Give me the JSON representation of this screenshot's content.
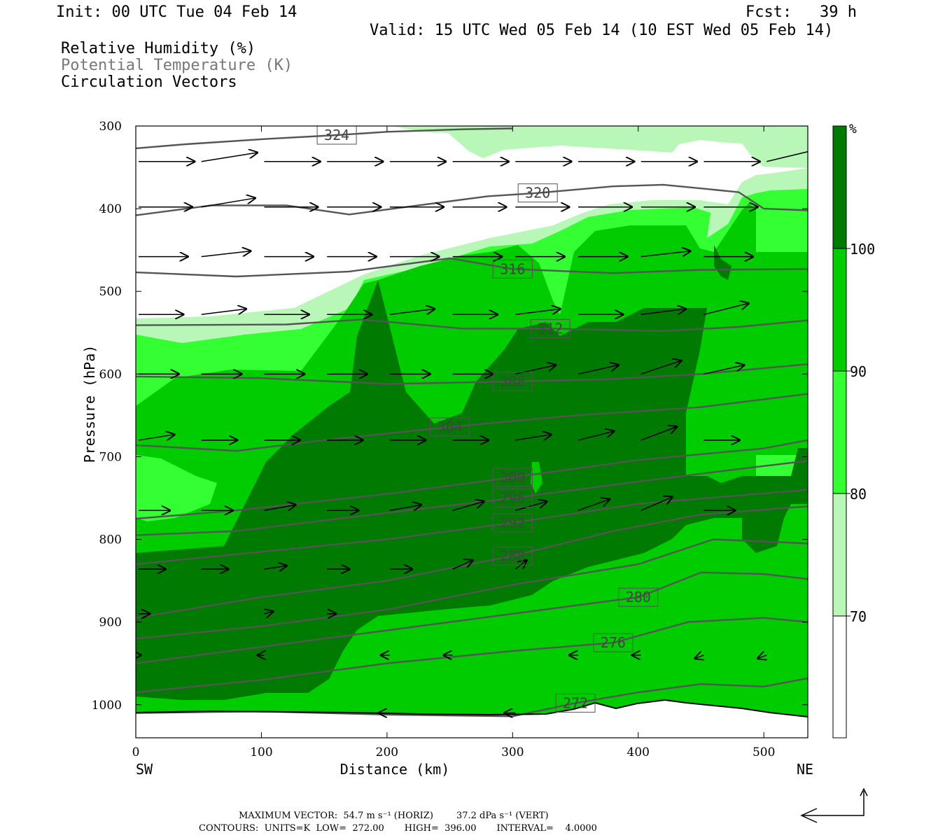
{
  "header": {
    "init": "Init: 00 UTC Tue 04 Feb 14",
    "fcst": "Fcst:   39 h",
    "valid": "Valid: 15 UTC Wed 05 Feb 14 (10 EST Wed 05 Feb 14)",
    "field1": "Relative Humidity (%)",
    "field2": "Potential Temperature (K)",
    "field3": "Circulation Vectors"
  },
  "footer": {
    "max_vector": "MAXIMUM VECTOR:  54.7 m s⁻¹ (HORIZ)        37.2 dPa s⁻¹ (VERT)",
    "contours": "CONTOURS:  UNITS=K  LOW=  272.00       HIGH=  396.00       INTERVAL=    4.0000"
  },
  "colors": {
    "rh_70_80": "#b8f7b8",
    "rh_80_90": "#33ff33",
    "rh_90_100": "#00cc00",
    "rh_100": "#007a00",
    "theta_line": "#555555",
    "vector": "#000000"
  },
  "chart_data": {
    "type": "heatmap",
    "title": "",
    "xlabel": "Distance (km)",
    "ylabel": "Pressure (hPa)",
    "xlim": [
      0,
      535
    ],
    "ylim": [
      1040,
      300
    ],
    "x_ticks": [
      "0",
      "100",
      "200",
      "300",
      "400",
      "500"
    ],
    "x_tick_values": [
      0,
      100,
      200,
      300,
      400,
      500
    ],
    "y_ticks": [
      "300",
      "400",
      "500",
      "600",
      "700",
      "800",
      "900",
      "1000"
    ],
    "y_tick_values": [
      300,
      400,
      500,
      600,
      700,
      800,
      900,
      1000
    ],
    "x_end_labels": {
      "left": "SW",
      "right": "NE"
    },
    "colorbar": {
      "unit": "%",
      "levels": [
        "70",
        "80",
        "90",
        "100"
      ],
      "level_values": [
        70,
        80,
        90,
        100
      ]
    },
    "theta_contours": [
      {
        "label": "324",
        "value": 324,
        "points": [
          [
            0,
            327
          ],
          [
            40,
            322
          ],
          [
            100,
            316
          ],
          [
            160,
            311
          ],
          [
            200,
            307
          ],
          [
            260,
            304
          ],
          [
            300,
            303
          ]
        ]
      },
      {
        "label": "320",
        "value": 320,
        "points": [
          [
            0,
            408
          ],
          [
            60,
            396
          ],
          [
            120,
            396
          ],
          [
            170,
            407
          ],
          [
            220,
            397
          ],
          [
            280,
            385
          ],
          [
            320,
            381
          ],
          [
            380,
            373
          ],
          [
            420,
            371
          ],
          [
            480,
            380
          ],
          [
            500,
            400
          ],
          [
            535,
            402
          ]
        ]
      },
      {
        "label": "316",
        "value": 316,
        "points": [
          [
            0,
            477
          ],
          [
            80,
            482
          ],
          [
            170,
            476
          ],
          [
            250,
            460
          ],
          [
            300,
            473
          ],
          [
            380,
            478
          ],
          [
            450,
            474
          ],
          [
            535,
            473
          ]
        ]
      },
      {
        "label": "312",
        "value": 312,
        "points": [
          [
            0,
            541
          ],
          [
            120,
            540
          ],
          [
            180,
            534
          ],
          [
            260,
            545
          ],
          [
            330,
            545
          ],
          [
            420,
            548
          ],
          [
            480,
            543
          ],
          [
            535,
            535
          ]
        ]
      },
      {
        "label": "308",
        "value": 308,
        "points": [
          [
            0,
            603
          ],
          [
            100,
            605
          ],
          [
            200,
            612
          ],
          [
            300,
            609
          ],
          [
            380,
            606
          ],
          [
            450,
            600
          ],
          [
            535,
            588
          ]
        ]
      },
      {
        "label": "304",
        "value": 304,
        "points": [
          [
            0,
            686
          ],
          [
            80,
            693
          ],
          [
            150,
            680
          ],
          [
            250,
            664
          ],
          [
            350,
            650
          ],
          [
            450,
            640
          ],
          [
            535,
            624
          ]
        ]
      },
      {
        "label": "300",
        "value": 300,
        "points": [
          [
            0,
            775
          ],
          [
            80,
            765
          ],
          [
            200,
            745
          ],
          [
            300,
            725
          ],
          [
            400,
            704
          ],
          [
            500,
            690
          ],
          [
            535,
            680
          ]
        ]
      },
      {
        "label": "296",
        "value": 296,
        "points": [
          [
            0,
            795
          ],
          [
            80,
            790
          ],
          [
            200,
            768
          ],
          [
            300,
            750
          ],
          [
            400,
            730
          ],
          [
            480,
            715
          ],
          [
            535,
            705
          ]
        ]
      },
      {
        "label": "292",
        "value": 292,
        "points": [
          [
            0,
            830
          ],
          [
            100,
            815
          ],
          [
            200,
            800
          ],
          [
            300,
            780
          ],
          [
            400,
            757
          ],
          [
            535,
            740
          ]
        ]
      },
      {
        "label": "288",
        "value": 288,
        "points": [
          [
            0,
            895
          ],
          [
            100,
            870
          ],
          [
            200,
            850
          ],
          [
            300,
            820
          ],
          [
            380,
            790
          ],
          [
            450,
            770
          ],
          [
            535,
            760
          ]
        ]
      },
      {
        "label": "",
        "value": 284,
        "points": [
          [
            0,
            920
          ],
          [
            100,
            905
          ],
          [
            200,
            885
          ],
          [
            300,
            855
          ],
          [
            400,
            830
          ],
          [
            460,
            800
          ],
          [
            535,
            805
          ]
        ]
      },
      {
        "label": "280",
        "value": 280,
        "points": [
          [
            0,
            950
          ],
          [
            100,
            930
          ],
          [
            200,
            910
          ],
          [
            300,
            890
          ],
          [
            400,
            870
          ],
          [
            450,
            840
          ],
          [
            500,
            842
          ],
          [
            535,
            848
          ]
        ]
      },
      {
        "label": "276",
        "value": 276,
        "points": [
          [
            0,
            985
          ],
          [
            100,
            970
          ],
          [
            200,
            950
          ],
          [
            300,
            935
          ],
          [
            380,
            925
          ],
          [
            440,
            900
          ],
          [
            500,
            895
          ],
          [
            535,
            900
          ]
        ]
      },
      {
        "label": "272",
        "value": 272,
        "points": [
          [
            0,
            1010
          ],
          [
            100,
            1008
          ],
          [
            200,
            1012
          ],
          [
            300,
            1014
          ],
          [
            350,
            998
          ],
          [
            400,
            985
          ],
          [
            450,
            975
          ],
          [
            500,
            978
          ],
          [
            535,
            968
          ]
        ]
      }
    ],
    "vectors": [
      {
        "x": 0,
        "p": 343,
        "u": 50,
        "w": 0
      },
      {
        "x": 50,
        "p": 343,
        "u": 50,
        "w": -8
      },
      {
        "x": 100,
        "p": 343,
        "u": 50,
        "w": 0
      },
      {
        "x": 150,
        "p": 343,
        "u": 50,
        "w": 0
      },
      {
        "x": 200,
        "p": 343,
        "u": 50,
        "w": 0
      },
      {
        "x": 250,
        "p": 343,
        "u": 50,
        "w": 0
      },
      {
        "x": 300,
        "p": 343,
        "u": 50,
        "w": 0
      },
      {
        "x": 350,
        "p": 343,
        "u": 50,
        "w": 0
      },
      {
        "x": 400,
        "p": 343,
        "u": 50,
        "w": 0
      },
      {
        "x": 450,
        "p": 343,
        "u": 50,
        "w": 0
      },
      {
        "x": 500,
        "p": 343,
        "u": 50,
        "w": -12
      },
      {
        "x": 0,
        "p": 398,
        "u": 48,
        "w": 0
      },
      {
        "x": 50,
        "p": 398,
        "u": 48,
        "w": -8
      },
      {
        "x": 100,
        "p": 398,
        "u": 48,
        "w": 0
      },
      {
        "x": 150,
        "p": 398,
        "u": 48,
        "w": 0
      },
      {
        "x": 200,
        "p": 398,
        "u": 48,
        "w": 0
      },
      {
        "x": 250,
        "p": 398,
        "u": 48,
        "w": 0
      },
      {
        "x": 300,
        "p": 398,
        "u": 48,
        "w": 0
      },
      {
        "x": 350,
        "p": 398,
        "u": 48,
        "w": 0
      },
      {
        "x": 400,
        "p": 398,
        "u": 48,
        "w": 0
      },
      {
        "x": 450,
        "p": 398,
        "u": 48,
        "w": 0
      },
      {
        "x": 0,
        "p": 458,
        "u": 44,
        "w": 0
      },
      {
        "x": 50,
        "p": 458,
        "u": 44,
        "w": -5
      },
      {
        "x": 100,
        "p": 458,
        "u": 44,
        "w": 0
      },
      {
        "x": 150,
        "p": 458,
        "u": 44,
        "w": 0
      },
      {
        "x": 200,
        "p": 458,
        "u": 44,
        "w": 0
      },
      {
        "x": 250,
        "p": 458,
        "u": 44,
        "w": 0
      },
      {
        "x": 300,
        "p": 458,
        "u": 44,
        "w": 0
      },
      {
        "x": 350,
        "p": 458,
        "u": 44,
        "w": 0
      },
      {
        "x": 400,
        "p": 458,
        "u": 44,
        "w": -5
      },
      {
        "x": 450,
        "p": 458,
        "u": 44,
        "w": 0
      },
      {
        "x": 0,
        "p": 528,
        "u": 40,
        "w": 0
      },
      {
        "x": 50,
        "p": 528,
        "u": 40,
        "w": -5
      },
      {
        "x": 100,
        "p": 528,
        "u": 40,
        "w": 0
      },
      {
        "x": 150,
        "p": 528,
        "u": 40,
        "w": 0
      },
      {
        "x": 200,
        "p": 528,
        "u": 40,
        "w": -5
      },
      {
        "x": 250,
        "p": 528,
        "u": 40,
        "w": 0
      },
      {
        "x": 300,
        "p": 528,
        "u": 40,
        "w": -5
      },
      {
        "x": 350,
        "p": 528,
        "u": 40,
        "w": 0
      },
      {
        "x": 400,
        "p": 528,
        "u": 40,
        "w": -5
      },
      {
        "x": 450,
        "p": 528,
        "u": 40,
        "w": -10
      },
      {
        "x": 0,
        "p": 600,
        "u": 36,
        "w": 0
      },
      {
        "x": 50,
        "p": 600,
        "u": 36,
        "w": 0
      },
      {
        "x": 100,
        "p": 600,
        "u": 36,
        "w": 0
      },
      {
        "x": 150,
        "p": 600,
        "u": 36,
        "w": 0
      },
      {
        "x": 200,
        "p": 600,
        "u": 36,
        "w": 0
      },
      {
        "x": 250,
        "p": 600,
        "u": 36,
        "w": 0
      },
      {
        "x": 300,
        "p": 600,
        "u": 36,
        "w": -8
      },
      {
        "x": 350,
        "p": 600,
        "u": 36,
        "w": -8
      },
      {
        "x": 400,
        "p": 600,
        "u": 36,
        "w": -12
      },
      {
        "x": 450,
        "p": 600,
        "u": 36,
        "w": -8
      },
      {
        "x": 0,
        "p": 680,
        "u": 32,
        "w": -5
      },
      {
        "x": 50,
        "p": 680,
        "u": 32,
        "w": 0
      },
      {
        "x": 100,
        "p": 680,
        "u": 32,
        "w": 0
      },
      {
        "x": 150,
        "p": 680,
        "u": 32,
        "w": 0
      },
      {
        "x": 200,
        "p": 680,
        "u": 32,
        "w": 0
      },
      {
        "x": 250,
        "p": 680,
        "u": 32,
        "w": 0
      },
      {
        "x": 300,
        "p": 680,
        "u": 32,
        "w": -5
      },
      {
        "x": 350,
        "p": 680,
        "u": 32,
        "w": -8
      },
      {
        "x": 400,
        "p": 680,
        "u": 32,
        "w": -12
      },
      {
        "x": 450,
        "p": 680,
        "u": 32,
        "w": 0
      },
      {
        "x": 0,
        "p": 765,
        "u": 28,
        "w": 0
      },
      {
        "x": 50,
        "p": 765,
        "u": 28,
        "w": 0
      },
      {
        "x": 100,
        "p": 765,
        "u": 28,
        "w": -5
      },
      {
        "x": 150,
        "p": 765,
        "u": 28,
        "w": 0
      },
      {
        "x": 200,
        "p": 765,
        "u": 28,
        "w": -5
      },
      {
        "x": 250,
        "p": 765,
        "u": 28,
        "w": -8
      },
      {
        "x": 300,
        "p": 765,
        "u": 28,
        "w": -8
      },
      {
        "x": 350,
        "p": 765,
        "u": 28,
        "w": -10
      },
      {
        "x": 400,
        "p": 765,
        "u": 28,
        "w": -12
      },
      {
        "x": 450,
        "p": 765,
        "u": 28,
        "w": 0
      },
      {
        "x": 0,
        "p": 836,
        "u": 24,
        "w": 0
      },
      {
        "x": 50,
        "p": 836,
        "u": 24,
        "w": 0
      },
      {
        "x": 100,
        "p": 836,
        "u": 20,
        "w": -3
      },
      {
        "x": 150,
        "p": 836,
        "u": 20,
        "w": 0
      },
      {
        "x": 200,
        "p": 836,
        "u": 20,
        "w": 0
      },
      {
        "x": 250,
        "p": 836,
        "u": 18,
        "w": -8
      },
      {
        "x": 300,
        "p": 836,
        "u": 10,
        "w": -8
      },
      {
        "x": 0,
        "p": 890,
        "u": 10,
        "w": 0
      },
      {
        "x": 100,
        "p": 890,
        "u": 8,
        "w": -2
      },
      {
        "x": 150,
        "p": 890,
        "u": 8,
        "w": 0
      },
      {
        "x": 0,
        "p": 940,
        "u": 2,
        "w": 0
      },
      {
        "x": 100,
        "p": 940,
        "u": -6,
        "w": 0
      },
      {
        "x": 200,
        "p": 940,
        "u": -8,
        "w": 0
      },
      {
        "x": 250,
        "p": 940,
        "u": -8,
        "w": 0
      },
      {
        "x": 350,
        "p": 940,
        "u": -8,
        "w": 0
      },
      {
        "x": 400,
        "p": 940,
        "u": -8,
        "w": 0
      },
      {
        "x": 450,
        "p": 940,
        "u": -8,
        "w": 3
      },
      {
        "x": 500,
        "p": 940,
        "u": -8,
        "w": 3
      },
      {
        "x": 200,
        "p": 1010,
        "u": -10,
        "w": 0
      },
      {
        "x": 300,
        "p": 1010,
        "u": -10,
        "w": 0
      }
    ]
  }
}
